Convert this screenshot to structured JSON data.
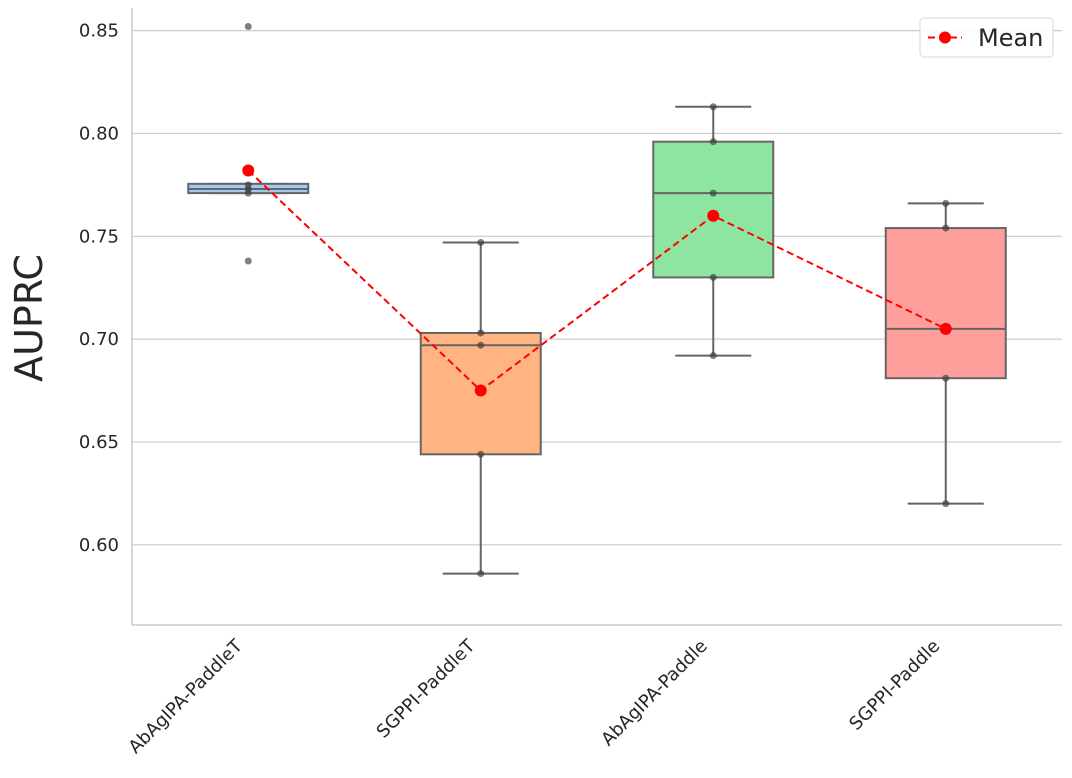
{
  "chart_data": {
    "type": "box",
    "ylabel": "AUPRC",
    "xlabel": "",
    "ylim": [
      0.561,
      0.861
    ],
    "yticks": [
      0.6,
      0.65,
      0.7,
      0.75,
      0.8,
      0.85
    ],
    "ytick_labels": [
      "0.60",
      "0.65",
      "0.70",
      "0.75",
      "0.80",
      "0.85"
    ],
    "grid": "horizontal",
    "legend": {
      "position": "top-right",
      "entries": [
        "Mean"
      ]
    },
    "mean_color": "#ff0000",
    "categories": [
      "AbAgIPA-PaddleT",
      "SGPPI-PaddleT",
      "AbAgIPA-Paddle",
      "SGPPI-Paddle"
    ],
    "box_colors": [
      "#a1c9f4",
      "#ffb482",
      "#8de5a1",
      "#ff9f9b"
    ],
    "boxes": [
      {
        "whisker_low": 0.771,
        "q1": 0.771,
        "median": 0.773,
        "q3": 0.7755,
        "whisker_high": 0.7755,
        "outliers": [
          0.852,
          0.738
        ]
      },
      {
        "whisker_low": 0.586,
        "q1": 0.644,
        "median": 0.697,
        "q3": 0.703,
        "whisker_high": 0.747,
        "outliers": []
      },
      {
        "whisker_low": 0.692,
        "q1": 0.73,
        "median": 0.771,
        "q3": 0.796,
        "whisker_high": 0.813,
        "outliers": []
      },
      {
        "whisker_low": 0.62,
        "q1": 0.681,
        "median": 0.705,
        "q3": 0.754,
        "whisker_high": 0.766,
        "outliers": []
      }
    ],
    "points": [
      [
        0.852,
        0.775,
        0.773,
        0.771,
        0.738
      ],
      [
        0.747,
        0.703,
        0.697,
        0.644,
        0.586
      ],
      [
        0.813,
        0.796,
        0.771,
        0.73,
        0.692
      ],
      [
        0.766,
        0.754,
        0.705,
        0.681,
        0.62
      ]
    ],
    "means": [
      0.782,
      0.675,
      0.76,
      0.705
    ]
  }
}
